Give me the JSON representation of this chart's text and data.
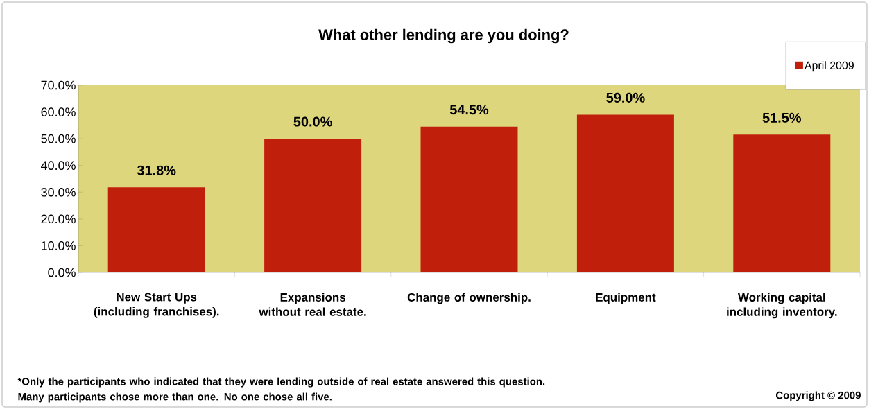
{
  "chart_data": {
    "type": "bar",
    "title": "What other lending are you doing?",
    "categories": [
      "New Start Ups (including franchises).",
      "Expansions without real estate.",
      "Change of ownership.",
      "Equipment",
      "Working capital including inventory."
    ],
    "series": [
      {
        "name": "April 2009",
        "color": "#c0200b",
        "values": [
          31.8,
          50.0,
          54.5,
          59.0,
          51.5
        ],
        "value_labels": [
          "31.8%",
          "50.0%",
          "54.5%",
          "59.0%",
          "51.5%"
        ]
      }
    ],
    "ylim": [
      0,
      70
    ],
    "yticks": [
      {
        "value": 0,
        "label": "0.0%"
      },
      {
        "value": 10,
        "label": "10.0%"
      },
      {
        "value": 20,
        "label": "20.0%"
      },
      {
        "value": 30,
        "label": "30.0%"
      },
      {
        "value": 40,
        "label": "40.0%"
      },
      {
        "value": 50,
        "label": "50.0%"
      },
      {
        "value": 60,
        "label": "60.0%"
      },
      {
        "value": 70,
        "label": "70.0%"
      }
    ],
    "legend": "top right",
    "grid": false,
    "annotations": [
      "*Only the participants who indicated that they were lending outside of real estate answered this question. Many participants chose more than one. No one chose all five.",
      "Copyright © 2009"
    ]
  }
}
